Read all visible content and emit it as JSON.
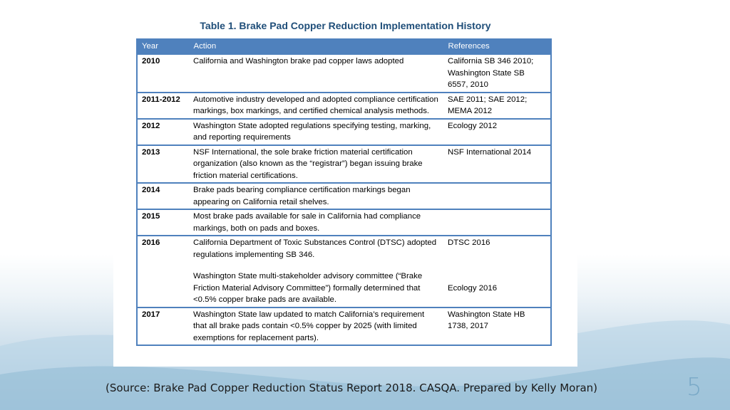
{
  "table": {
    "title": "Table 1.  Brake Pad Copper Reduction Implementation History",
    "headers": [
      "Year",
      "Action",
      "References"
    ],
    "rows": [
      {
        "year": "2010",
        "action": [
          "California and Washington brake pad copper laws adopted"
        ],
        "references": [
          "California SB 346 2010; Washington State SB 6557, 2010"
        ]
      },
      {
        "year": "2011-2012",
        "action": [
          "Automotive industry developed and adopted compliance certification markings, box markings, and certified chemical analysis methods."
        ],
        "references": [
          "SAE 2011; SAE 2012; MEMA 2012"
        ]
      },
      {
        "year": "2012",
        "action": [
          "Washington State adopted regulations specifying testing, marking, and reporting requirements"
        ],
        "references": [
          "Ecology 2012"
        ]
      },
      {
        "year": "2013",
        "action": [
          "NSF International, the sole brake friction material certification organization (also known as the “registrar”) began issuing brake friction material certifications."
        ],
        "references": [
          "NSF International 2014"
        ]
      },
      {
        "year": "2014",
        "action": [
          "Brake pads bearing compliance certification markings began appearing on California retail shelves."
        ],
        "references": [
          ""
        ]
      },
      {
        "year": "2015",
        "action": [
          "Most brake pads available for sale in California had compliance markings, both on pads and boxes."
        ],
        "references": [
          ""
        ]
      },
      {
        "year": "2016",
        "action": [
          "California Department of Toxic Substances Control (DTSC) adopted regulations implementing SB 346.",
          "Washington State multi-stakeholder advisory committee (“Brake Friction Material Advisory Committee”) formally determined that <0.5% copper brake pads are available."
        ],
        "references": [
          "DTSC 2016",
          "Ecology 2016"
        ]
      },
      {
        "year": "2017",
        "action": [
          "Washington State law updated to match California’s requirement that all brake pads contain <0.5% copper by 2025 (with limited exemptions for replacement parts)."
        ],
        "references": [
          "Washington State HB 1738, 2017"
        ]
      }
    ]
  },
  "footer": {
    "source": "(Source: Brake Pad Copper Reduction Status Report 2018. CASQA. Prepared by Kelly Moran)",
    "page_number": "5"
  },
  "colors": {
    "header_fill": "#4f81bd",
    "title_text": "#1f4e79",
    "page_number": "#7aa9c7"
  }
}
